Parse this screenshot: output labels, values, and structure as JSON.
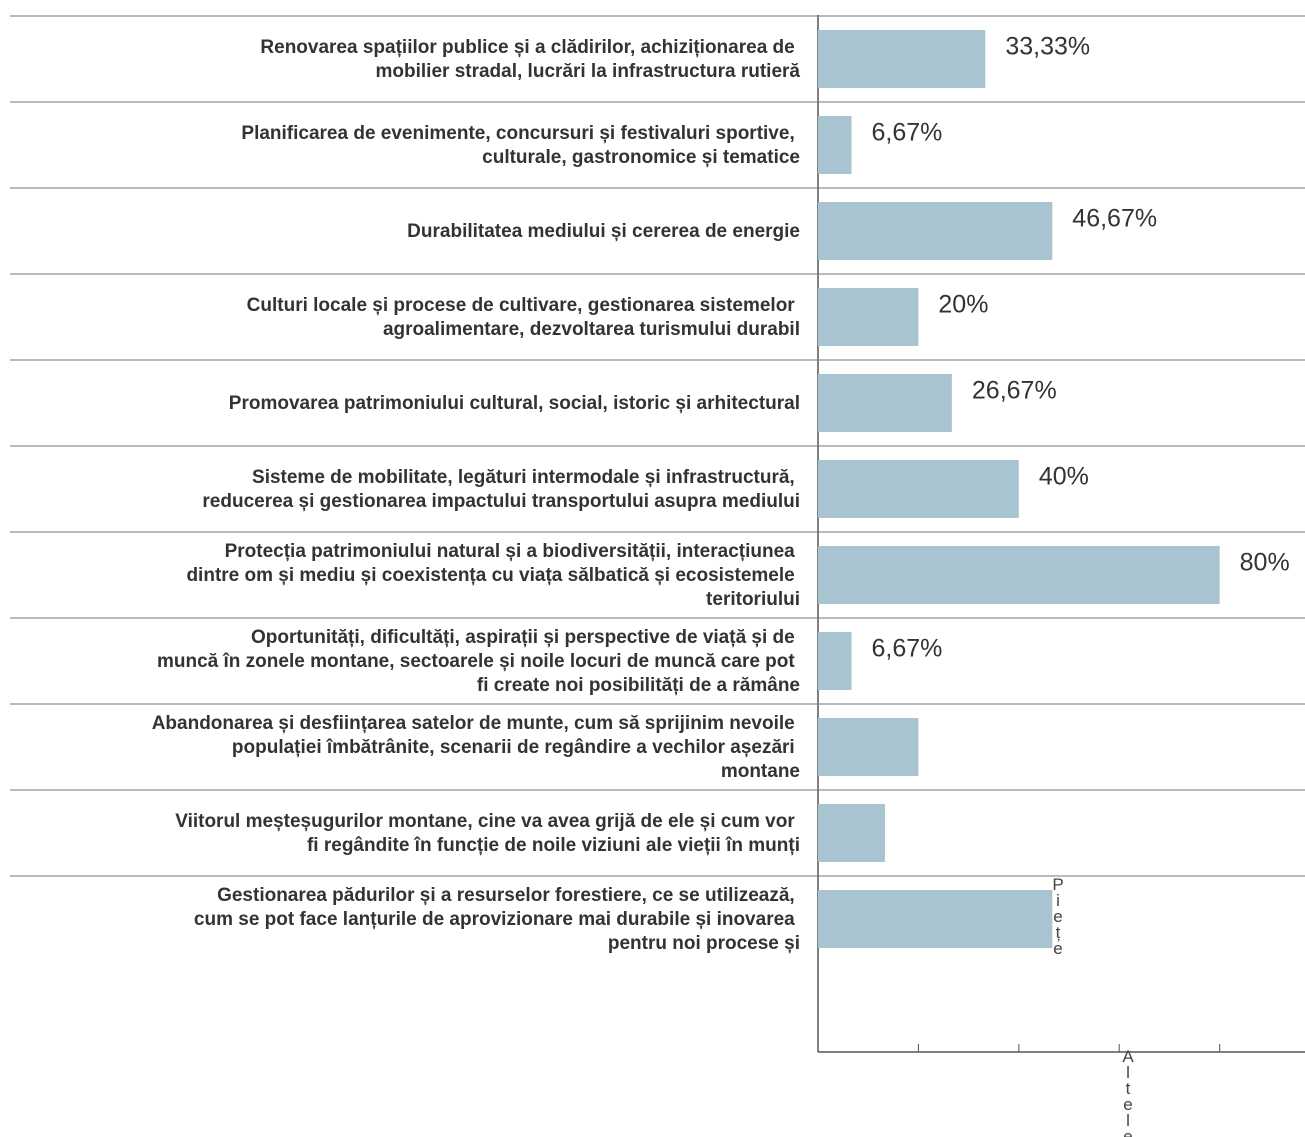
{
  "chart_data": {
    "type": "barh",
    "categories": [
      "Renovarea spațiilor publice și a clădirilor, achiziționarea de mobilier stradal, lucrări la infrastructura rutieră",
      "Planificarea de evenimente, concursuri și festivaluri sportive, culturale, gastronomice și tematice",
      "Durabilitatea mediului și cererea de energie",
      "Culturi locale și procese de cultivare, gestionarea sistemelor agroalimentare, dezvoltarea turismului durabil",
      "Promovarea patrimoniului cultural, social, istoric și arhitectural",
      "Sisteme de mobilitate, legături intermodale și infrastructură, reducerea și gestionarea impactului transportului asupra mediului",
      "Protecția patrimoniului natural și a biodiversității, interacțiunea dintre om și mediu și coexistența cu viața sălbatică și ecosistemele teritoriului",
      "Oportunități, dificultăți, aspirații și perspective de viață și de muncă în zonele montane, sectoarele și noile locuri de muncă care pot fi create noi posibilități de a rămâne",
      "Abandonarea și desființarea satelor de munte, cum să sprijinim nevoile populației îmbătrânite, scenarii de regândire a vechilor așezări montane",
      "Viitorul meșteșugurilor montane, cine va avea grijă de ele și cum vor fi regândite în funcție de noile viziuni ale vieții în munți",
      "Gestionarea pădurilor și a resurselor forestiere, ce se utilizează, cum se pot face lanțurile de aprovizionare mai durabile și inovarea pentru noi procese și"
    ],
    "values": [
      33.33,
      6.67,
      46.67,
      20,
      26.67,
      40,
      80,
      6.67,
      20,
      13.33,
      46.67
    ],
    "value_labels": [
      "33,33%",
      "6,67%",
      "46,67%",
      "20%",
      "26,67%",
      "40%",
      "80%",
      "6,67%",
      null,
      null,
      null
    ],
    "color": "#a9c4d1",
    "xlim": [
      0,
      97
    ],
    "xticks": [
      0,
      20,
      40,
      60,
      80
    ],
    "annotations": [
      "Piețe",
      "Altele"
    ]
  }
}
